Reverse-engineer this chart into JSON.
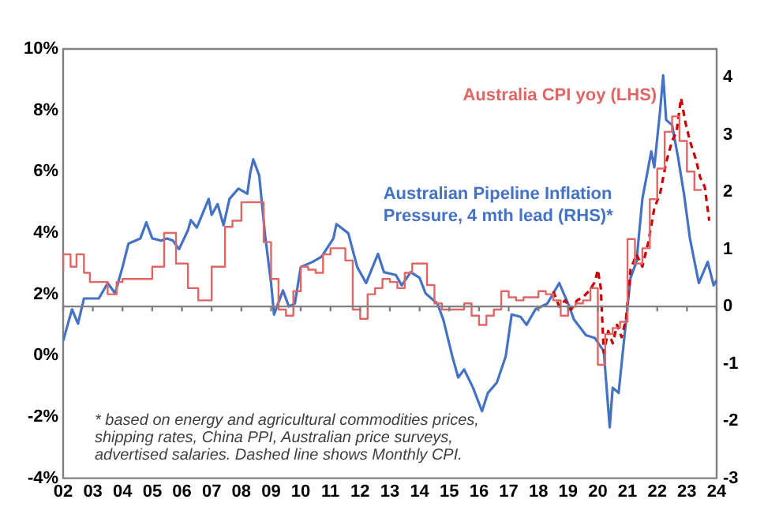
{
  "chart_data": {
    "type": "line",
    "xlim": [
      2002,
      2024
    ],
    "xticks": [
      {
        "value": 2002,
        "label": "02"
      },
      {
        "value": 2003,
        "label": "03"
      },
      {
        "value": 2004,
        "label": "04"
      },
      {
        "value": 2005,
        "label": "05"
      },
      {
        "value": 2006,
        "label": "06"
      },
      {
        "value": 2007,
        "label": "07"
      },
      {
        "value": 2008,
        "label": "08"
      },
      {
        "value": 2009,
        "label": "09"
      },
      {
        "value": 2010,
        "label": "10"
      },
      {
        "value": 2011,
        "label": "11"
      },
      {
        "value": 2012,
        "label": "12"
      },
      {
        "value": 2013,
        "label": "13"
      },
      {
        "value": 2014,
        "label": "14"
      },
      {
        "value": 2015,
        "label": "15"
      },
      {
        "value": 2016,
        "label": "16"
      },
      {
        "value": 2017,
        "label": "17"
      },
      {
        "value": 2018,
        "label": "18"
      },
      {
        "value": 2019,
        "label": "19"
      },
      {
        "value": 2020,
        "label": "20"
      },
      {
        "value": 2021,
        "label": "21"
      },
      {
        "value": 2022,
        "label": "22"
      },
      {
        "value": 2023,
        "label": "23"
      },
      {
        "value": 2024,
        "label": "24"
      }
    ],
    "ylim": [
      -4,
      10
    ],
    "yticks": [
      {
        "value": -4,
        "label": "-4%"
      },
      {
        "value": -2,
        "label": "-2%"
      },
      {
        "value": 0,
        "label": "0%"
      },
      {
        "value": 2,
        "label": "2%"
      },
      {
        "value": 4,
        "label": "4%"
      },
      {
        "value": 6,
        "label": "6%"
      },
      {
        "value": 8,
        "label": "8%"
      },
      {
        "value": 10,
        "label": "10%"
      }
    ],
    "y2lim": [
      -3,
      4.5
    ],
    "y2ticks": [
      -3,
      -2,
      -1,
      0,
      1,
      2,
      3,
      4
    ],
    "grid": false,
    "legend": false,
    "marker": "none",
    "ref_lines": [
      {
        "axis": "y2",
        "value": 0,
        "color": "#808080"
      }
    ],
    "annotations": [
      "* based on energy and agricultural commodities prices, shipping rates, China PPI, Australian price surveys, advertised salaries. Dashed line shows Monthly CPI."
    ],
    "series": [
      {
        "name": "Australia CPI yoy (LHS)",
        "type": "step",
        "color": "#e06666",
        "x": [
          2002,
          2002.25,
          2002.45,
          2002.7,
          2002.9,
          2003.5,
          2003.8,
          2004.0,
          2004.3,
          2004.6,
          2005.0,
          2005.4,
          2005.8,
          2006.2,
          2006.55,
          2006.8,
          2007.0,
          2007.45,
          2007.7,
          2008.0,
          2008.4,
          2008.75,
          2009.0,
          2009.25,
          2009.5,
          2009.75,
          2010.0,
          2010.25,
          2010.5,
          2010.75,
          2011.0,
          2011.25,
          2011.5,
          2011.75,
          2012.0,
          2012.25,
          2012.5,
          2012.75,
          2013.0,
          2013.25,
          2013.5,
          2013.75,
          2014.0,
          2014.25,
          2014.5,
          2014.75,
          2015.0,
          2015.5,
          2015.75,
          2016.0,
          2016.25,
          2016.5,
          2016.75,
          2017.0,
          2017.25,
          2017.5,
          2017.75,
          2018.0,
          2018.25,
          2018.5,
          2018.75,
          2019.0,
          2019.25,
          2019.5,
          2019.75,
          2020.0,
          2020.25,
          2020.5,
          2020.75,
          2021.0,
          2021.25,
          2021.5,
          2021.75,
          2022.0,
          2022.25,
          2022.5,
          2022.75,
          2023.0,
          2023.25,
          2023.5
        ],
        "values": [
          2.8,
          3.3,
          2.9,
          3.3,
          2.7,
          2.4,
          2.0,
          2.4,
          2.5,
          2.5,
          2.5,
          2.9,
          4.0,
          3.0,
          2.2,
          1.8,
          1.8,
          2.9,
          4.2,
          4.4,
          5.0,
          5.0,
          3.7,
          2.5,
          1.5,
          1.3,
          2.1,
          2.9,
          2.8,
          2.7,
          3.3,
          3.5,
          3.5,
          3.1,
          1.5,
          1.2,
          2.0,
          2.2,
          2.5,
          2.4,
          2.2,
          2.7,
          3.0,
          3.0,
          2.3,
          1.7,
          1.5,
          1.5,
          1.7,
          1.3,
          1.0,
          1.3,
          1.5,
          2.1,
          1.9,
          1.8,
          1.9,
          1.9,
          2.1,
          2.0,
          1.8,
          1.3,
          1.6,
          1.7,
          1.8,
          2.2,
          -0.3,
          0.7,
          0.9,
          1.1,
          3.8,
          3.0,
          3.5,
          5.1,
          6.1,
          7.3,
          7.8,
          7.0,
          6.0,
          5.4
        ]
      },
      {
        "line_style": "dashed",
        "color": "#cc0000",
        "x": [
          2018.5,
          2018.7,
          2018.9,
          2019.1,
          2019.3,
          2019.5,
          2019.7,
          2019.9,
          2020.0,
          2020.1,
          2020.2,
          2020.35,
          2020.5,
          2020.65,
          2020.8,
          2020.95,
          2021.1,
          2021.3,
          2021.5,
          2021.7,
          2021.9,
          2022.1,
          2022.3,
          2022.5,
          2022.65,
          2022.8,
          2022.95,
          2023.1,
          2023.3,
          2023.45,
          2023.6,
          2023.75
        ],
        "values": [
          2.1,
          1.6,
          1.8,
          1.5,
          1.8,
          1.9,
          2.1,
          2.4,
          2.8,
          2.2,
          0.1,
          0.8,
          0.4,
          1.0,
          0.6,
          1.2,
          2.8,
          3.3,
          2.9,
          3.7,
          4.8,
          5.3,
          6.3,
          7.0,
          7.3,
          8.4,
          7.6,
          7.0,
          6.4,
          5.8,
          5.5,
          4.4
        ]
      },
      {
        "name": "Australian Pipeline Inflation Pressure, 4 mth lead (RHS)*",
        "axis": "y2",
        "color": "#4472c4",
        "x": [
          2002.0,
          2002.3,
          2002.5,
          2002.7,
          2003.2,
          2003.5,
          2003.75,
          2004.0,
          2004.2,
          2004.6,
          2004.8,
          2005.0,
          2005.3,
          2005.5,
          2005.7,
          2005.9,
          2006.2,
          2006.3,
          2006.5,
          2006.9,
          2007.0,
          2007.2,
          2007.4,
          2007.6,
          2007.9,
          2008.2,
          2008.3,
          2008.4,
          2008.6,
          2008.8,
          2009.0,
          2009.1,
          2009.4,
          2009.6,
          2009.8,
          2010.0,
          2010.4,
          2010.7,
          2011.1,
          2011.2,
          2011.6,
          2011.9,
          2012.2,
          2012.6,
          2012.8,
          2013.2,
          2013.4,
          2013.7,
          2014.0,
          2014.2,
          2014.6,
          2014.8,
          2015.1,
          2015.3,
          2015.5,
          2015.8,
          2016.1,
          2016.3,
          2016.6,
          2016.9,
          2017.1,
          2017.4,
          2017.6,
          2017.9,
          2018.3,
          2018.5,
          2018.7,
          2019.0,
          2019.2,
          2019.6,
          2019.9,
          2020.2,
          2020.4,
          2020.5,
          2020.7,
          2020.9,
          2021.1,
          2021.3,
          2021.5,
          2021.8,
          2021.9,
          2022.1,
          2022.2,
          2022.3,
          2022.5,
          2022.7,
          2022.9,
          2023.1,
          2023.4,
          2023.7,
          2023.9,
          2024.0
        ],
        "values": [
          -0.6,
          -0.05,
          -0.3,
          0.14,
          0.14,
          0.41,
          0.23,
          0.69,
          1.1,
          1.19,
          1.47,
          1.19,
          1.15,
          1.19,
          1.15,
          1.0,
          1.33,
          1.51,
          1.38,
          1.88,
          1.6,
          1.79,
          1.42,
          1.88,
          2.06,
          1.97,
          2.34,
          2.57,
          2.29,
          1.24,
          0.41,
          -0.14,
          0.28,
          0.0,
          0.05,
          0.69,
          0.78,
          0.87,
          1.19,
          1.44,
          1.28,
          0.69,
          0.41,
          0.92,
          0.6,
          0.55,
          0.37,
          0.6,
          0.5,
          0.23,
          0.05,
          -0.23,
          -0.87,
          -1.24,
          -1.1,
          -1.42,
          -1.83,
          -1.51,
          -1.33,
          -0.87,
          -0.14,
          -0.18,
          -0.32,
          -0.05,
          0.05,
          0.23,
          0.41,
          0.05,
          -0.23,
          -0.5,
          -0.55,
          -0.78,
          -2.11,
          -1.42,
          -1.51,
          -0.5,
          0.5,
          0.78,
          1.88,
          2.71,
          2.43,
          3.44,
          4.04,
          3.26,
          3.17,
          2.61,
          1.97,
          1.19,
          0.41,
          0.78,
          0.37,
          0.46
        ]
      }
    ]
  }
}
